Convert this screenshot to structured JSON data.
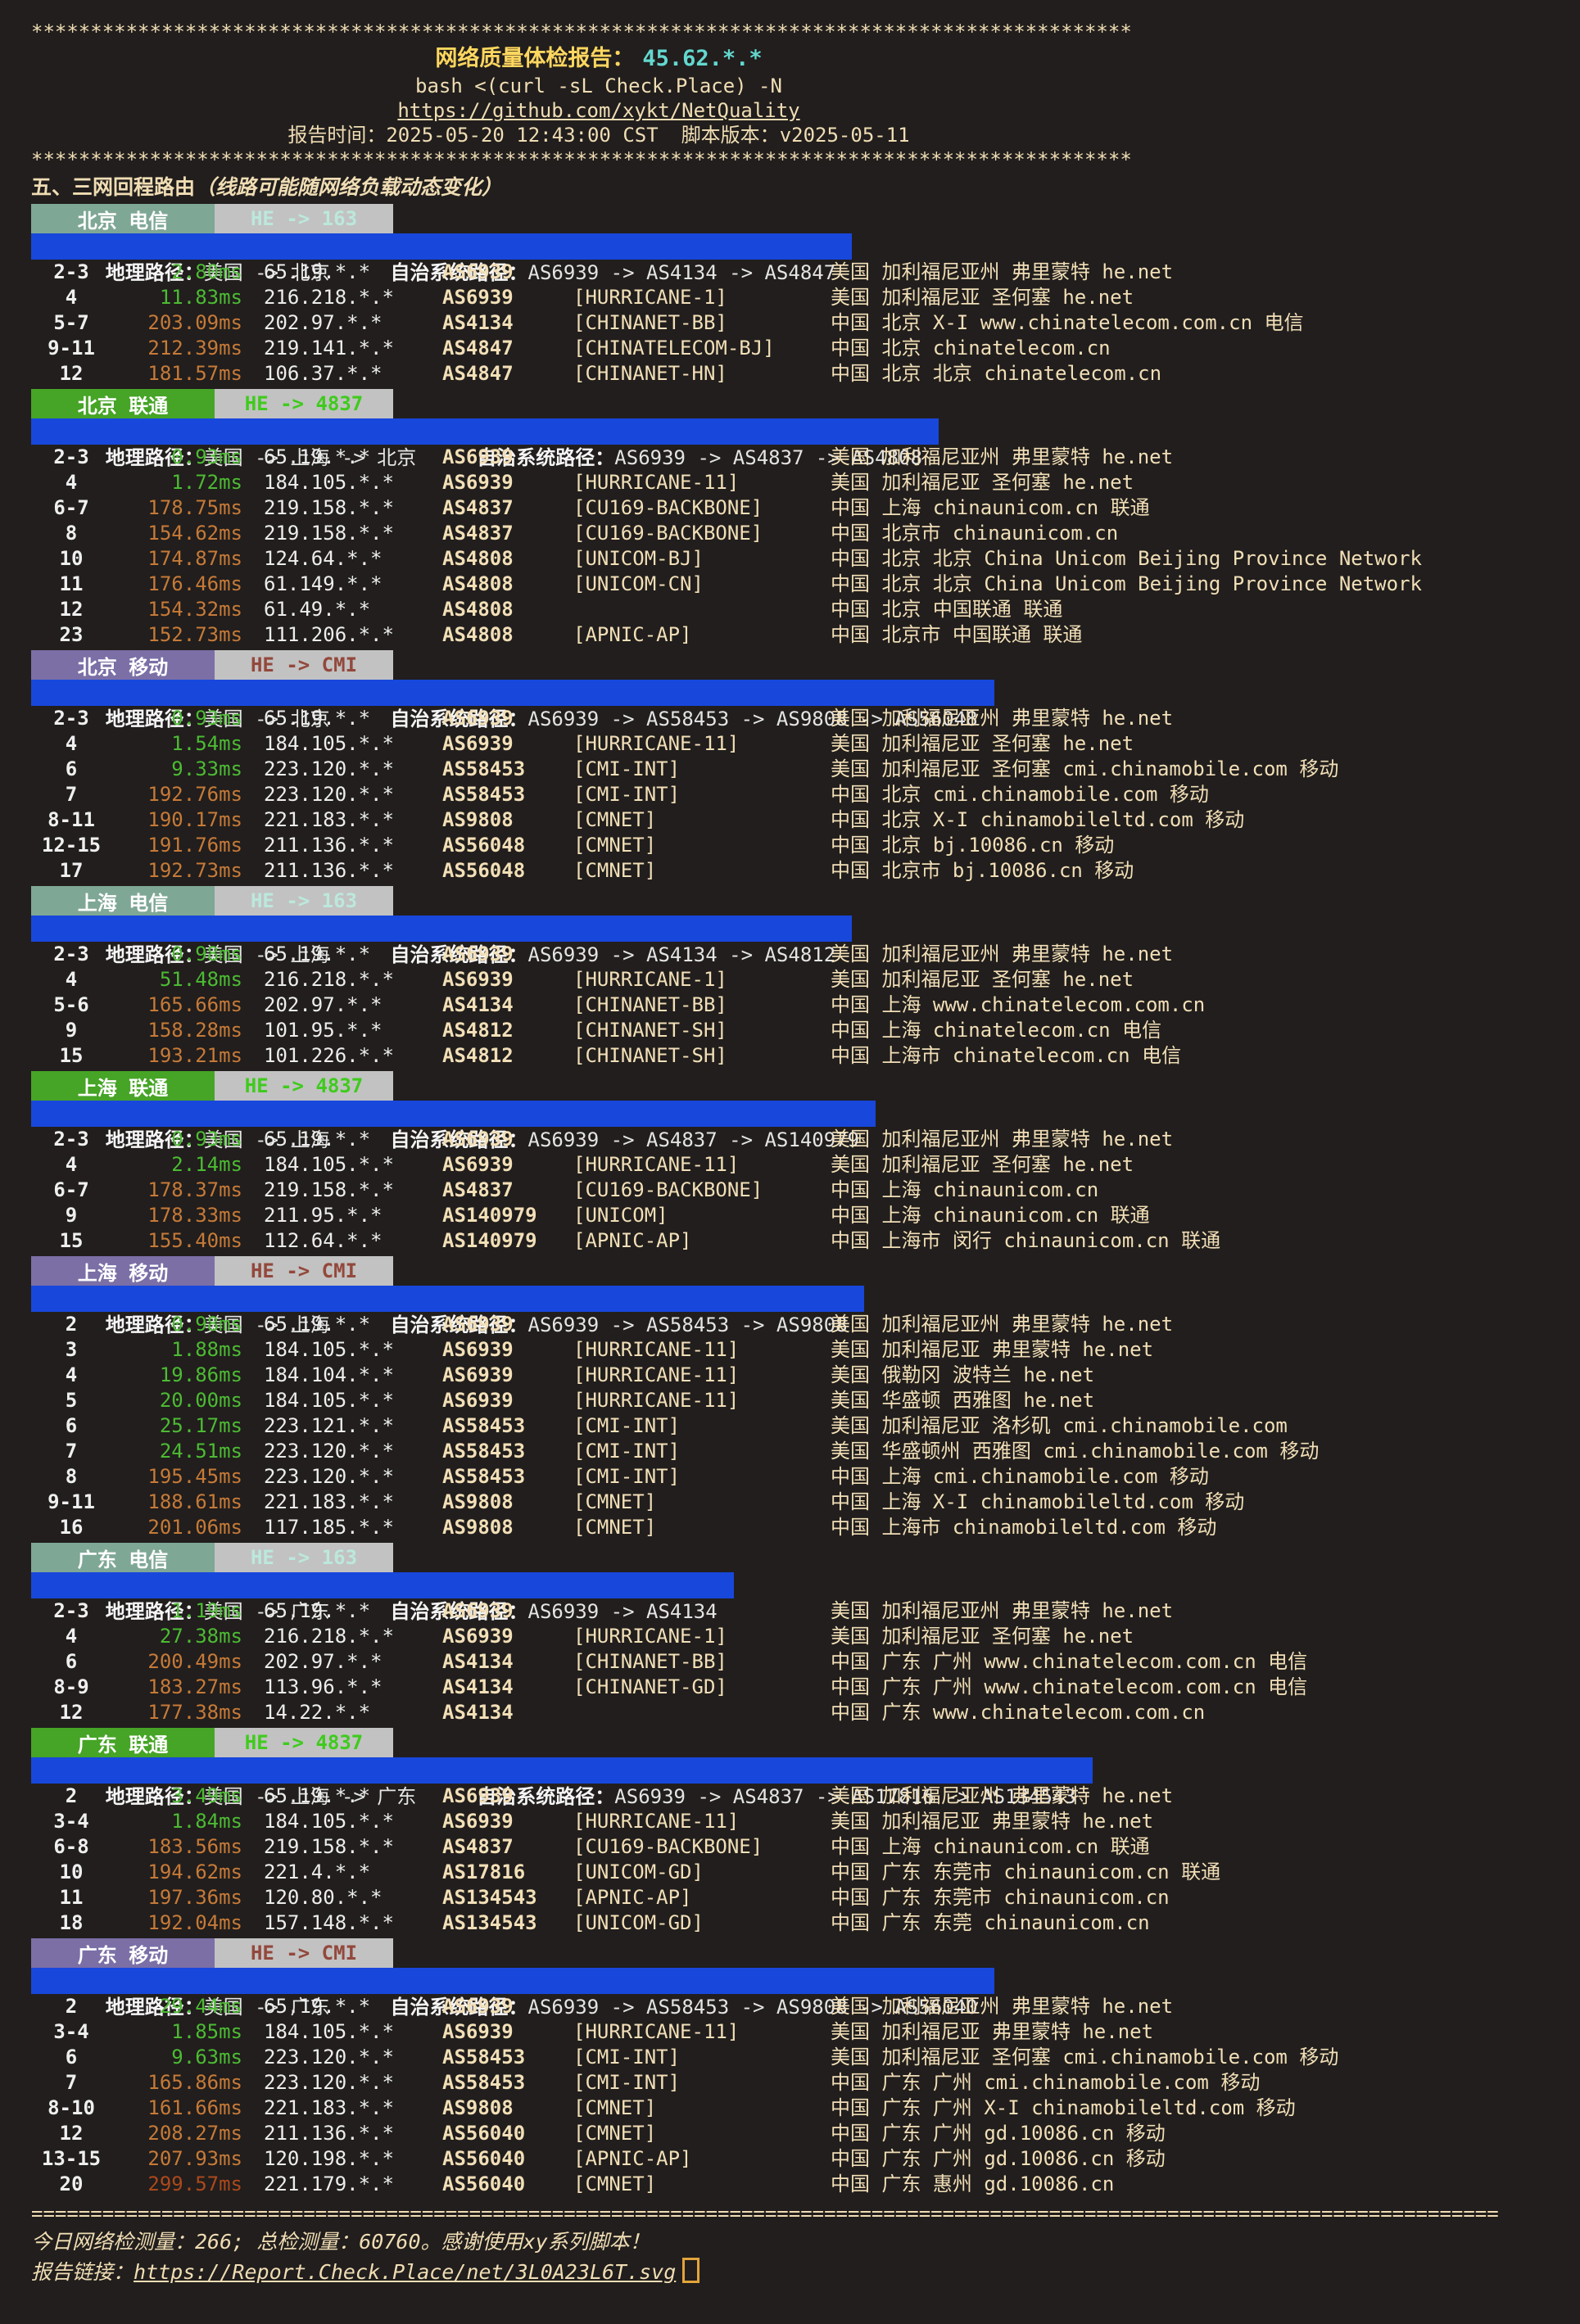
{
  "colors": {
    "background": "#211E1D",
    "foreground_wheat": "#F0DDB4",
    "title_yellow": "#FFD75F",
    "ip_cyan": "#63D8CF",
    "path_bar_blue": "#1847DC",
    "badge_telecom": "#7FA796",
    "badge_unicom": "#46A426",
    "badge_mobile": "#7B6FA6",
    "badge_route_gray": "#C2C2C2",
    "route_163_text": "#BCE8DC",
    "route_4837_text": "#3FCB1D",
    "route_cmi_text": "#93483C",
    "latency_good_green": "#4CBB33",
    "latency_warn_orange": "#C67A38",
    "latency_bad_red": "#AC491B",
    "cursor_orange": "#E2A43B"
  },
  "header": {
    "stars": "*********************************************************************************************",
    "title_label": "网络质量体检报告：",
    "title_ip": "45.62.*.*",
    "command": "bash <(curl -sL Check.Place) -N",
    "repo_link": "https://github.com/xykt/NetQuality",
    "time_label": "报告时间：",
    "time_value": "2025-05-20 12:43:00 CST",
    "version_label": "脚本版本：",
    "version_value": "v2025-05-11",
    "section_heading": "五、三网回程路由",
    "section_note": "（线路可能随网络负载动态变化）"
  },
  "labels": {
    "geo_label": "地理路径：",
    "as_label": "自治系统路径："
  },
  "sections": [
    {
      "label": "北京 电信",
      "carrier_style": "carrier-telecom",
      "route_label": "HE -> 163",
      "route_style": "route-he163",
      "geo_path": "美国 -> 北京",
      "as_path": "AS6939 -> AS4134 -> AS4847",
      "hops": [
        {
          "hop": "2-3",
          "latency": "2.80ms",
          "ip": "65.19.*.*",
          "asn": "AS6939",
          "tag": "",
          "location": "美国 加利福尼亚州 弗里蒙特 he.net"
        },
        {
          "hop": "4",
          "latency": "11.83ms",
          "ip": "216.218.*.*",
          "asn": "AS6939",
          "tag": "[HURRICANE-1]",
          "location": "美国 加利福尼亚 圣何塞 he.net"
        },
        {
          "hop": "5-7",
          "latency": "203.09ms",
          "ip": "202.97.*.*",
          "asn": "AS4134",
          "tag": "[CHINANET-BB]",
          "location": "中国 北京 X-I www.chinatelecom.com.cn 电信"
        },
        {
          "hop": "9-11",
          "latency": "212.39ms",
          "ip": "219.141.*.*",
          "asn": "AS4847",
          "tag": "[CHINATELECOM-BJ]",
          "location": "中国 北京 chinatelecom.cn"
        },
        {
          "hop": "12",
          "latency": "181.57ms",
          "ip": "106.37.*.*",
          "asn": "AS4847",
          "tag": "[CHINANET-HN]",
          "location": "中国 北京 北京 chinatelecom.cn"
        }
      ]
    },
    {
      "label": "北京 联通",
      "carrier_style": "carrier-unicom",
      "route_label": "HE -> 4837",
      "route_style": "route-he4837",
      "geo_path": "美国 -> 上海 -> 北京",
      "as_path": "AS6939 -> AS4837 -> AS4808",
      "hops": [
        {
          "hop": "2-3",
          "latency": "0.93ms",
          "ip": "65.19.*.*",
          "asn": "AS6939",
          "tag": "",
          "location": "美国 加利福尼亚州 弗里蒙特 he.net"
        },
        {
          "hop": "4",
          "latency": "1.72ms",
          "ip": "184.105.*.*",
          "asn": "AS6939",
          "tag": "[HURRICANE-11]",
          "location": "美国 加利福尼亚 圣何塞 he.net"
        },
        {
          "hop": "6-7",
          "latency": "178.75ms",
          "ip": "219.158.*.*",
          "asn": "AS4837",
          "tag": "[CU169-BACKBONE]",
          "location": "中国 上海 chinaunicom.cn 联通"
        },
        {
          "hop": "8",
          "latency": "154.62ms",
          "ip": "219.158.*.*",
          "asn": "AS4837",
          "tag": "[CU169-BACKBONE]",
          "location": "中国 北京市 chinaunicom.cn"
        },
        {
          "hop": "10",
          "latency": "174.87ms",
          "ip": "124.64.*.*",
          "asn": "AS4808",
          "tag": "[UNICOM-BJ]",
          "location": "中国 北京 北京 China Unicom Beijing Province Network"
        },
        {
          "hop": "11",
          "latency": "176.46ms",
          "ip": "61.149.*.*",
          "asn": "AS4808",
          "tag": "[UNICOM-CN]",
          "location": "中国 北京 北京 China Unicom Beijing Province Network"
        },
        {
          "hop": "12",
          "latency": "154.32ms",
          "ip": "61.49.*.*",
          "asn": "AS4808",
          "tag": "",
          "location": "中国 北京 中国联通 联通"
        },
        {
          "hop": "23",
          "latency": "152.73ms",
          "ip": "111.206.*.*",
          "asn": "AS4808",
          "tag": "[APNIC-AP]",
          "location": "中国 北京市 中国联通 联通"
        }
      ]
    },
    {
      "label": "北京 移动",
      "carrier_style": "carrier-mobile",
      "route_label": "HE -> CMI",
      "route_style": "route-hecmi",
      "geo_path": "美国 -> 北京",
      "as_path": "AS6939 -> AS58453 -> AS9808 -> AS56048",
      "hops": [
        {
          "hop": "2-3",
          "latency": "0.93ms",
          "ip": "65.19.*.*",
          "asn": "AS6939",
          "tag": "",
          "location": "美国 加利福尼亚州 弗里蒙特 he.net"
        },
        {
          "hop": "4",
          "latency": "1.54ms",
          "ip": "184.105.*.*",
          "asn": "AS6939",
          "tag": "[HURRICANE-11]",
          "location": "美国 加利福尼亚 圣何塞 he.net"
        },
        {
          "hop": "6",
          "latency": "9.33ms",
          "ip": "223.120.*.*",
          "asn": "AS58453",
          "tag": "[CMI-INT]",
          "location": "美国 加利福尼亚 圣何塞 cmi.chinamobile.com 移动"
        },
        {
          "hop": "7",
          "latency": "192.76ms",
          "ip": "223.120.*.*",
          "asn": "AS58453",
          "tag": "[CMI-INT]",
          "location": "中国 北京 cmi.chinamobile.com 移动"
        },
        {
          "hop": "8-11",
          "latency": "190.17ms",
          "ip": "221.183.*.*",
          "asn": "AS9808",
          "tag": "[CMNET]",
          "location": "中国 北京 X-I chinamobileltd.com 移动"
        },
        {
          "hop": "12-15",
          "latency": "191.76ms",
          "ip": "211.136.*.*",
          "asn": "AS56048",
          "tag": "[CMNET]",
          "location": "中国 北京 bj.10086.cn 移动"
        },
        {
          "hop": "17",
          "latency": "192.73ms",
          "ip": "211.136.*.*",
          "asn": "AS56048",
          "tag": "[CMNET]",
          "location": "中国 北京市 bj.10086.cn 移动"
        }
      ]
    },
    {
      "label": "上海 电信",
      "carrier_style": "carrier-telecom",
      "route_label": "HE -> 163",
      "route_style": "route-he163",
      "geo_path": "美国 -> 上海",
      "as_path": "AS6939 -> AS4134 -> AS4812",
      "hops": [
        {
          "hop": "2-3",
          "latency": "0.98ms",
          "ip": "65.19.*.*",
          "asn": "AS6939",
          "tag": "",
          "location": "美国 加利福尼亚州 弗里蒙特 he.net"
        },
        {
          "hop": "4",
          "latency": "51.48ms",
          "ip": "216.218.*.*",
          "asn": "AS6939",
          "tag": "[HURRICANE-1]",
          "location": "美国 加利福尼亚 圣何塞 he.net"
        },
        {
          "hop": "5-6",
          "latency": "165.66ms",
          "ip": "202.97.*.*",
          "asn": "AS4134",
          "tag": "[CHINANET-BB]",
          "location": "中国 上海 www.chinatelecom.com.cn"
        },
        {
          "hop": "9",
          "latency": "158.28ms",
          "ip": "101.95.*.*",
          "asn": "AS4812",
          "tag": "[CHINANET-SH]",
          "location": "中国 上海 chinatelecom.cn 电信"
        },
        {
          "hop": "15",
          "latency": "193.21ms",
          "ip": "101.226.*.*",
          "asn": "AS4812",
          "tag": "[CHINANET-SH]",
          "location": "中国 上海市 chinatelecom.cn 电信"
        }
      ]
    },
    {
      "label": "上海 联通",
      "carrier_style": "carrier-unicom",
      "route_label": "HE -> 4837",
      "route_style": "route-he4837",
      "geo_path": "美国 -> 上海",
      "as_path": "AS6939 -> AS4837 -> AS140979",
      "hops": [
        {
          "hop": "2-3",
          "latency": "0.93ms",
          "ip": "65.19.*.*",
          "asn": "AS6939",
          "tag": "",
          "location": "美国 加利福尼亚州 弗里蒙特 he.net"
        },
        {
          "hop": "4",
          "latency": "2.14ms",
          "ip": "184.105.*.*",
          "asn": "AS6939",
          "tag": "[HURRICANE-11]",
          "location": "美国 加利福尼亚 圣何塞 he.net"
        },
        {
          "hop": "6-7",
          "latency": "178.37ms",
          "ip": "219.158.*.*",
          "asn": "AS4837",
          "tag": "[CU169-BACKBONE]",
          "location": "中国 上海 chinaunicom.cn"
        },
        {
          "hop": "9",
          "latency": "178.33ms",
          "ip": "211.95.*.*",
          "asn": "AS140979",
          "tag": "[UNICOM]",
          "location": "中国 上海 chinaunicom.cn 联通"
        },
        {
          "hop": "15",
          "latency": "155.40ms",
          "ip": "112.64.*.*",
          "asn": "AS140979",
          "tag": "[APNIC-AP]",
          "location": "中国 上海市 闵行 chinaunicom.cn 联通"
        }
      ]
    },
    {
      "label": "上海 移动",
      "carrier_style": "carrier-mobile",
      "route_label": "HE -> CMI",
      "route_style": "route-hecmi",
      "geo_path": "美国 -> 上海",
      "as_path": "AS6939 -> AS58453 -> AS9808",
      "hops": [
        {
          "hop": "2",
          "latency": "0.98ms",
          "ip": "65.19.*.*",
          "asn": "AS6939",
          "tag": "",
          "location": "美国 加利福尼亚州 弗里蒙特 he.net"
        },
        {
          "hop": "3",
          "latency": "1.88ms",
          "ip": "184.105.*.*",
          "asn": "AS6939",
          "tag": "[HURRICANE-11]",
          "location": "美国 加利福尼亚 弗里蒙特 he.net"
        },
        {
          "hop": "4",
          "latency": "19.86ms",
          "ip": "184.104.*.*",
          "asn": "AS6939",
          "tag": "[HURRICANE-11]",
          "location": "美国 俄勒冈 波特兰 he.net"
        },
        {
          "hop": "5",
          "latency": "20.00ms",
          "ip": "184.105.*.*",
          "asn": "AS6939",
          "tag": "[HURRICANE-11]",
          "location": "美国 华盛顿 西雅图 he.net"
        },
        {
          "hop": "6",
          "latency": "25.17ms",
          "ip": "223.121.*.*",
          "asn": "AS58453",
          "tag": "[CMI-INT]",
          "location": "美国 加利福尼亚 洛杉矶 cmi.chinamobile.com"
        },
        {
          "hop": "7",
          "latency": "24.51ms",
          "ip": "223.120.*.*",
          "asn": "AS58453",
          "tag": "[CMI-INT]",
          "location": "美国 华盛顿州 西雅图 cmi.chinamobile.com 移动"
        },
        {
          "hop": "8",
          "latency": "195.45ms",
          "ip": "223.120.*.*",
          "asn": "AS58453",
          "tag": "[CMI-INT]",
          "location": "中国 上海 cmi.chinamobile.com 移动"
        },
        {
          "hop": "9-11",
          "latency": "188.61ms",
          "ip": "221.183.*.*",
          "asn": "AS9808",
          "tag": "[CMNET]",
          "location": "中国 上海 X-I chinamobileltd.com 移动"
        },
        {
          "hop": "16",
          "latency": "201.06ms",
          "ip": "117.185.*.*",
          "asn": "AS9808",
          "tag": "[CMNET]",
          "location": "中国 上海市 chinamobileltd.com 移动"
        }
      ]
    },
    {
      "label": "广东 电信",
      "carrier_style": "carrier-telecom",
      "route_label": "HE -> 163",
      "route_style": "route-he163",
      "geo_path": "美国 -> 广东",
      "as_path": "AS6939 -> AS4134",
      "hops": [
        {
          "hop": "2-3",
          "latency": "1.19ms",
          "ip": "65.19.*.*",
          "asn": "AS6939",
          "tag": "",
          "location": "美国 加利福尼亚州 弗里蒙特 he.net"
        },
        {
          "hop": "4",
          "latency": "27.38ms",
          "ip": "216.218.*.*",
          "asn": "AS6939",
          "tag": "[HURRICANE-1]",
          "location": "美国 加利福尼亚 圣何塞 he.net"
        },
        {
          "hop": "6",
          "latency": "200.49ms",
          "ip": "202.97.*.*",
          "asn": "AS4134",
          "tag": "[CHINANET-BB]",
          "location": "中国 广东 广州 www.chinatelecom.com.cn 电信"
        },
        {
          "hop": "8-9",
          "latency": "183.27ms",
          "ip": "113.96.*.*",
          "asn": "AS4134",
          "tag": "[CHINANET-GD]",
          "location": "中国 广东 广州 www.chinatelecom.com.cn 电信"
        },
        {
          "hop": "12",
          "latency": "177.38ms",
          "ip": "14.22.*.*",
          "asn": "AS4134",
          "tag": "",
          "location": "中国 广东 www.chinatelecom.com.cn"
        }
      ]
    },
    {
      "label": "广东 联通",
      "carrier_style": "carrier-unicom",
      "route_label": "HE -> 4837",
      "route_style": "route-he4837",
      "geo_path": "美国 -> 上海 -> 广东",
      "as_path": "AS6939 -> AS4837 -> AS17816 -> AS134543",
      "hops": [
        {
          "hop": "2",
          "latency": "3.49ms",
          "ip": "65.19.*.*",
          "asn": "AS6939",
          "tag": "",
          "location": "美国 加利福尼亚州 弗里蒙特 he.net"
        },
        {
          "hop": "3-4",
          "latency": "1.84ms",
          "ip": "184.105.*.*",
          "asn": "AS6939",
          "tag": "[HURRICANE-11]",
          "location": "美国 加利福尼亚 弗里蒙特 he.net"
        },
        {
          "hop": "6-8",
          "latency": "183.56ms",
          "ip": "219.158.*.*",
          "asn": "AS4837",
          "tag": "[CU169-BACKBONE]",
          "location": "中国 上海 chinaunicom.cn 联通"
        },
        {
          "hop": "10",
          "latency": "194.62ms",
          "ip": "221.4.*.*",
          "asn": "AS17816",
          "tag": "[UNICOM-GD]",
          "location": "中国 广东 东莞市 chinaunicom.cn 联通"
        },
        {
          "hop": "11",
          "latency": "197.36ms",
          "ip": "120.80.*.*",
          "asn": "AS134543",
          "tag": "[APNIC-AP]",
          "location": "中国 广东 东莞市 chinaunicom.cn"
        },
        {
          "hop": "18",
          "latency": "192.04ms",
          "ip": "157.148.*.*",
          "asn": "AS134543",
          "tag": "[UNICOM-GD]",
          "location": "中国 广东 东莞 chinaunicom.cn"
        }
      ]
    },
    {
      "label": "广东 移动",
      "carrier_style": "carrier-mobile",
      "route_label": "HE -> CMI",
      "route_style": "route-hecmi",
      "geo_path": "美国 -> 广东",
      "as_path": "AS6939 -> AS58453 -> AS9808 -> AS56040",
      "hops": [
        {
          "hop": "2",
          "latency": "29.44ms",
          "ip": "65.19.*.*",
          "asn": "AS6939",
          "tag": "",
          "location": "美国 加利福尼亚州 弗里蒙特 he.net"
        },
        {
          "hop": "3-4",
          "latency": "1.85ms",
          "ip": "184.105.*.*",
          "asn": "AS6939",
          "tag": "[HURRICANE-11]",
          "location": "美国 加利福尼亚 弗里蒙特 he.net"
        },
        {
          "hop": "6",
          "latency": "9.63ms",
          "ip": "223.120.*.*",
          "asn": "AS58453",
          "tag": "[CMI-INT]",
          "location": "美国 加利福尼亚 圣何塞 cmi.chinamobile.com 移动"
        },
        {
          "hop": "7",
          "latency": "165.86ms",
          "ip": "223.120.*.*",
          "asn": "AS58453",
          "tag": "[CMI-INT]",
          "location": "中国 广东 广州 cmi.chinamobile.com 移动"
        },
        {
          "hop": "8-10",
          "latency": "161.66ms",
          "ip": "221.183.*.*",
          "asn": "AS9808",
          "tag": "[CMNET]",
          "location": "中国 广东 广州 X-I chinamobileltd.com 移动"
        },
        {
          "hop": "12",
          "latency": "208.27ms",
          "ip": "211.136.*.*",
          "asn": "AS56040",
          "tag": "[CMNET]",
          "location": "中国 广东 广州 gd.10086.cn 移动"
        },
        {
          "hop": "13-15",
          "latency": "207.93ms",
          "ip": "120.198.*.*",
          "asn": "AS56040",
          "tag": "[APNIC-AP]",
          "location": "中国 广东 广州 gd.10086.cn 移动"
        },
        {
          "hop": "20",
          "latency": "299.57ms",
          "ip": "221.179.*.*",
          "asn": "AS56040",
          "tag": "[CMNET]",
          "location": "中国 广东 惠州 gd.10086.cn"
        }
      ]
    }
  ],
  "footer": {
    "separator": "============================================================================================================================",
    "stats_line": "今日网络检测量：266; 总检测量：60760。感谢使用xy系列脚本！",
    "report_link_label": "报告链接：",
    "report_link": "https://Report.Check.Place/net/3L0A23L6T.svg"
  }
}
